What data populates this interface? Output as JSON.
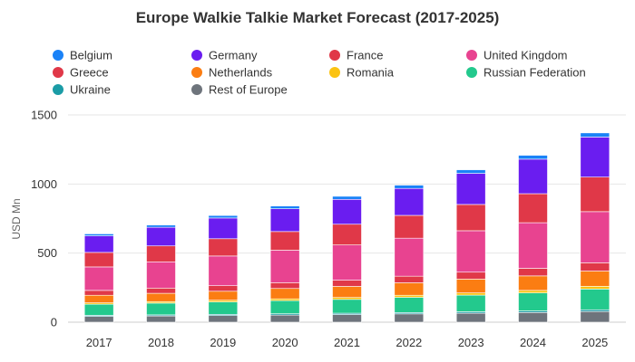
{
  "chart_data": {
    "type": "bar",
    "stacked": true,
    "title": "Europe Walkie Talkie Market Forecast (2017-2025)",
    "xlabel": "",
    "ylabel": "USD Mn",
    "ylim": [
      0,
      1500
    ],
    "yticks": [
      0,
      500,
      1000,
      1500
    ],
    "grid": true,
    "legend_position": "top",
    "categories": [
      "2017",
      "2018",
      "2019",
      "2020",
      "2021",
      "2022",
      "2023",
      "2024",
      "2025"
    ],
    "series": [
      {
        "name": "Belgium",
        "color": "#1a82f7",
        "values": [
          14,
          16,
          18,
          20,
          22,
          24,
          26,
          28,
          30
        ]
      },
      {
        "name": "Germany",
        "color": "#6a1df0",
        "values": [
          120,
          135,
          150,
          165,
          180,
          195,
          225,
          250,
          290
        ]
      },
      {
        "name": "France",
        "color": "#e03848",
        "values": [
          105,
          115,
          125,
          135,
          150,
          165,
          190,
          210,
          250
        ]
      },
      {
        "name": "United Kingdom",
        "color": "#e84390",
        "values": [
          170,
          190,
          215,
          235,
          255,
          275,
          300,
          330,
          370
        ]
      },
      {
        "name": "Greece",
        "color": "#e03848",
        "values": [
          35,
          38,
          40,
          42,
          45,
          48,
          50,
          55,
          60
        ]
      },
      {
        "name": "Netherlands",
        "color": "#fb7d12",
        "values": [
          55,
          60,
          65,
          75,
          80,
          90,
          100,
          105,
          110
        ]
      },
      {
        "name": "Romania",
        "color": "#fbc312",
        "values": [
          10,
          11,
          12,
          13,
          14,
          15,
          16,
          18,
          20
        ]
      },
      {
        "name": "Russian Federation",
        "color": "#23c98d",
        "values": [
          80,
          85,
          90,
          95,
          100,
          110,
          120,
          130,
          150
        ]
      },
      {
        "name": "Ukraine",
        "color": "#1b9ca6",
        "values": [
          8,
          8,
          9,
          9,
          10,
          10,
          11,
          12,
          13
        ]
      },
      {
        "name": "Rest of Europe",
        "color": "#6e747c",
        "values": [
          42,
          45,
          48,
          52,
          55,
          60,
          65,
          70,
          77
        ]
      }
    ]
  }
}
